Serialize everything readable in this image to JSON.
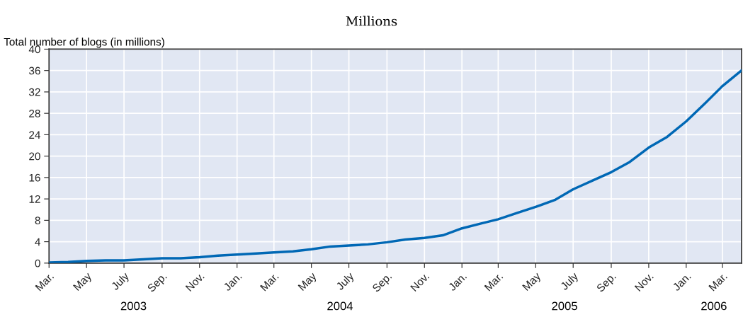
{
  "chart_data": {
    "type": "line",
    "subtitle": "Millions",
    "ylabel": "Total number of blogs (in millions)",
    "x": [
      "2003-03",
      "2003-04",
      "2003-05",
      "2003-06",
      "2003-07",
      "2003-08",
      "2003-09",
      "2003-10",
      "2003-11",
      "2003-12",
      "2004-01",
      "2004-02",
      "2004-03",
      "2004-04",
      "2004-05",
      "2004-06",
      "2004-07",
      "2004-08",
      "2004-09",
      "2004-10",
      "2004-11",
      "2004-12",
      "2005-01",
      "2005-02",
      "2005-03",
      "2005-04",
      "2005-05",
      "2005-06",
      "2005-07",
      "2005-08",
      "2005-09",
      "2005-10",
      "2005-11",
      "2005-12",
      "2006-01",
      "2006-02",
      "2006-03",
      "2006-04"
    ],
    "series": [
      {
        "color": "#0068b5",
        "values": [
          0.1,
          0.2,
          0.4,
          0.5,
          0.5,
          0.7,
          0.9,
          0.9,
          1.1,
          1.4,
          1.6,
          1.8,
          2.0,
          2.2,
          2.6,
          3.1,
          3.3,
          3.5,
          3.9,
          4.4,
          4.7,
          5.2,
          6.5,
          7.4,
          8.2,
          9.4,
          10.5,
          11.8,
          13.8,
          15.4,
          17.0,
          18.9,
          21.6,
          23.6,
          26.5,
          29.9,
          33.1,
          36.0
        ]
      }
    ],
    "xlim": [
      "2003-03",
      "2006-04"
    ],
    "xticks": [
      {
        "value": "2003-03",
        "label": "Mar."
      },
      {
        "value": "2003-05",
        "label": "May"
      },
      {
        "value": "2003-07",
        "label": "July"
      },
      {
        "value": "2003-09",
        "label": "Sep."
      },
      {
        "value": "2003-11",
        "label": "Nov."
      },
      {
        "value": "2004-01",
        "label": "Jan."
      },
      {
        "value": "2004-03",
        "label": "Mar."
      },
      {
        "value": "2004-05",
        "label": "May"
      },
      {
        "value": "2004-07",
        "label": "July"
      },
      {
        "value": "2004-09",
        "label": "Sep."
      },
      {
        "value": "2004-11",
        "label": "Nov."
      },
      {
        "value": "2005-01",
        "label": "Jan."
      },
      {
        "value": "2005-03",
        "label": "Mar."
      },
      {
        "value": "2005-05",
        "label": "May"
      },
      {
        "value": "2005-07",
        "label": "July"
      },
      {
        "value": "2005-09",
        "label": "Sep."
      },
      {
        "value": "2005-11",
        "label": "Nov."
      },
      {
        "value": "2006-01",
        "label": "Jan."
      },
      {
        "value": "2006-03",
        "label": "Mar."
      }
    ],
    "ylim": [
      0,
      40
    ],
    "yticks": [
      0,
      4,
      8,
      12,
      16,
      20,
      24,
      28,
      32,
      36,
      40
    ],
    "grid": true,
    "marker": "none",
    "line_style": "solid",
    "annotations": [
      "2003",
      "2004",
      "2005",
      "2006"
    ]
  }
}
